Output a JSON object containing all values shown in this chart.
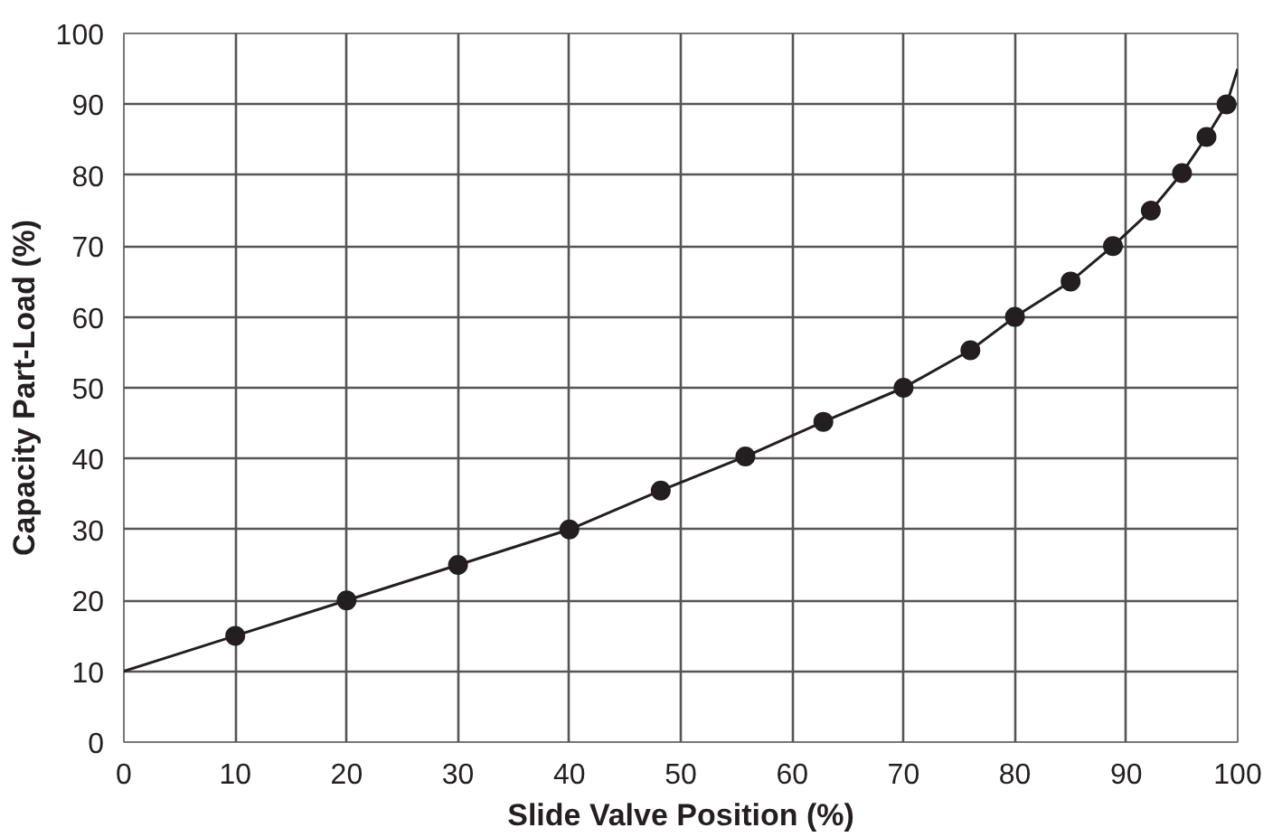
{
  "chart_data": {
    "type": "line",
    "xlabel": "Slide Valve Position (%)",
    "ylabel": "Capacity Part-Load (%)",
    "xlim": [
      0,
      100
    ],
    "ylim": [
      0,
      100
    ],
    "xticks": [
      0,
      10,
      20,
      30,
      40,
      50,
      60,
      70,
      80,
      90,
      100
    ],
    "yticks": [
      0,
      10,
      20,
      30,
      40,
      50,
      60,
      70,
      80,
      90,
      100
    ],
    "grid": true,
    "series": [
      {
        "color": "#231f20",
        "marker": "none",
        "x": [
          0,
          10,
          20,
          30,
          40,
          48.2,
          55.8,
          62.8,
          70,
          76,
          80,
          85,
          88.8,
          92.2,
          95,
          97.2,
          99,
          100
        ],
        "values": [
          10,
          15,
          20,
          25,
          30,
          35.5,
          40.3,
          45.2,
          50,
          55.3,
          60,
          65,
          70,
          75,
          80.3,
          85.4,
          90,
          95
        ]
      },
      {
        "type": "scatter",
        "color": "#231f20",
        "marker": "circle",
        "x": [
          10,
          20,
          30,
          40,
          48.2,
          55.8,
          62.8,
          70,
          76,
          80,
          85,
          88.8,
          92.2,
          95,
          97.2,
          99
        ],
        "values": [
          15,
          20,
          25,
          30,
          35.5,
          40.3,
          45.2,
          50,
          55.3,
          60,
          65,
          70,
          75,
          80.3,
          85.4,
          90
        ]
      }
    ]
  }
}
